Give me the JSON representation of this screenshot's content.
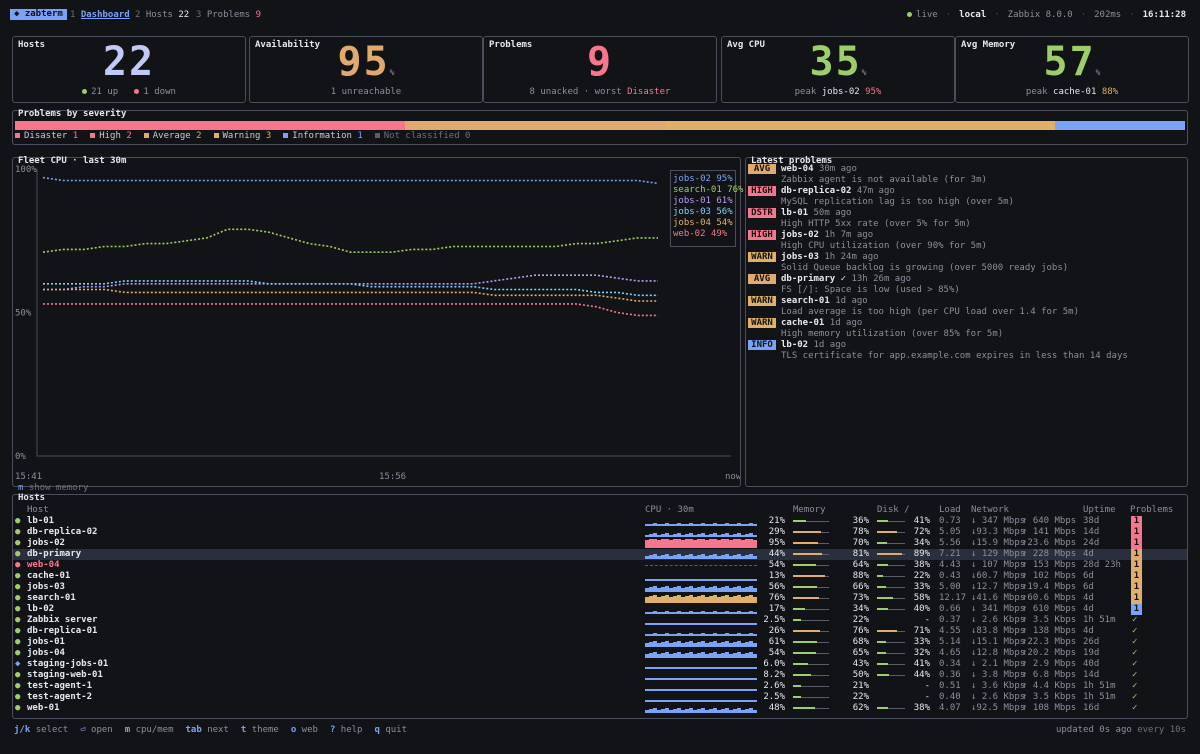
{
  "app": {
    "logo": "◆ zabterm",
    "tabs": [
      {
        "num": "1",
        "label": "Dashboard"
      },
      {
        "num": "2",
        "label": "Hosts",
        "count": "22"
      },
      {
        "num": "3",
        "label": "Problems",
        "count": "9"
      }
    ],
    "status": "live",
    "context": "local",
    "server": "Zabbix 8.0.0",
    "latency": "202ms",
    "time": "16:11:28"
  },
  "cards": {
    "hosts": {
      "title": "Hosts",
      "value": "22",
      "up": "21 up",
      "down": "1 down"
    },
    "availability": {
      "title": "Availability",
      "value": "95",
      "unit": "%",
      "sub": "1 unreachable"
    },
    "problems": {
      "title": "Problems",
      "value": "9",
      "sub_prefix": "8 unacked · worst",
      "worst": "Disaster"
    },
    "cpu": {
      "title": "Avg CPU",
      "value": "35",
      "unit": "%",
      "peak_label": "peak",
      "peak_host": "jobs-02",
      "peak_value": "95%"
    },
    "memory": {
      "title": "Avg Memory",
      "value": "57",
      "unit": "%",
      "peak_label": "peak",
      "peak_host": "cache-01",
      "peak_value": "88%"
    }
  },
  "severity": {
    "title": "Problems by severity",
    "items": [
      {
        "label": "Disaster",
        "count": "1",
        "color": "#f7768e"
      },
      {
        "label": "High",
        "count": "2",
        "color": "#f7768e"
      },
      {
        "label": "Average",
        "count": "2",
        "color": "#e0a96d"
      },
      {
        "label": "Warning",
        "count": "3",
        "color": "#e0af68"
      },
      {
        "label": "Information",
        "count": "1",
        "color": "#7aa2f7"
      },
      {
        "label": "Not classified",
        "count": "0",
        "color": "#5a5e6a"
      }
    ]
  },
  "chart_data": {
    "type": "line",
    "title": "Fleet CPU · last 30m",
    "yticks": [
      "100%",
      "50%",
      "0%"
    ],
    "ylim": [
      0,
      100
    ],
    "xticks": [
      "15:41",
      "15:56",
      "now"
    ],
    "series": [
      {
        "name": "jobs-02",
        "last": "95%",
        "color": "#7aa2f7",
        "values": [
          97,
          96,
          96,
          96,
          96,
          96,
          96,
          96,
          96,
          96,
          96,
          96,
          96,
          96,
          96,
          96,
          96,
          96,
          96,
          96,
          96,
          96,
          96,
          96,
          96,
          96,
          96,
          96,
          96,
          96,
          95
        ]
      },
      {
        "name": "search-01",
        "last": "76%",
        "color": "#9ece6a",
        "values": [
          71,
          72,
          72,
          73,
          73,
          74,
          74,
          75,
          76,
          79,
          79,
          78,
          76,
          74,
          73,
          71,
          71,
          71,
          72,
          72,
          73,
          73,
          73,
          73,
          73,
          73,
          74,
          74,
          75,
          76,
          76
        ]
      },
      {
        "name": "jobs-01",
        "last": "61%",
        "color": "#bb9af7",
        "values": [
          58,
          58,
          59,
          59,
          60,
          60,
          60,
          60,
          60,
          60,
          60,
          60,
          60,
          60,
          60,
          60,
          60,
          60,
          60,
          60,
          60,
          60,
          61,
          62,
          63,
          63,
          63,
          63,
          62,
          61,
          61
        ]
      },
      {
        "name": "jobs-03",
        "last": "56%",
        "color": "#7dcfff",
        "values": [
          60,
          60,
          60,
          60,
          61,
          61,
          61,
          61,
          61,
          61,
          61,
          60,
          60,
          60,
          60,
          60,
          59,
          59,
          59,
          59,
          59,
          59,
          58,
          58,
          58,
          58,
          58,
          57,
          57,
          56,
          56
        ]
      },
      {
        "name": "jobs-04",
        "last": "54%",
        "color": "#e0af68",
        "values": [
          58,
          58,
          58,
          58,
          57,
          57,
          57,
          57,
          57,
          57,
          57,
          57,
          57,
          57,
          57,
          57,
          57,
          57,
          57,
          57,
          57,
          57,
          56,
          56,
          56,
          56,
          56,
          56,
          55,
          54,
          54
        ]
      },
      {
        "name": "web-02",
        "last": "49%",
        "color": "#f7768e",
        "values": [
          53,
          53,
          53,
          53,
          53,
          53,
          53,
          53,
          53,
          53,
          53,
          53,
          53,
          53,
          53,
          53,
          53,
          53,
          53,
          53,
          53,
          53,
          53,
          53,
          53,
          53,
          53,
          52,
          50,
          49,
          49
        ]
      }
    ]
  },
  "latest": {
    "title": "Latest problems",
    "items": [
      {
        "sev": "AVG",
        "color": "#e0a96d",
        "host": "web-04",
        "ago": "30m ago",
        "desc": "Zabbix agent is not available (for 3m)"
      },
      {
        "sev": "HIGH",
        "color": "#f7768e",
        "host": "db-replica-02",
        "ago": "47m ago",
        "desc": "MySQL replication lag is too high (over 5m)"
      },
      {
        "sev": "DSTR",
        "color": "#f7768e",
        "host": "lb-01",
        "ago": "50m ago",
        "desc": "High HTTP 5xx rate (over 5% for 5m)"
      },
      {
        "sev": "HIGH",
        "color": "#f7768e",
        "host": "jobs-02",
        "ago": "1h 7m ago",
        "desc": "High CPU utilization (over 90% for 5m)"
      },
      {
        "sev": "WARN",
        "color": "#e0af68",
        "host": "jobs-03",
        "ago": "1h 24m ago",
        "desc": "Solid Queue backlog is growing (over 5000 ready jobs)"
      },
      {
        "sev": "AVG",
        "color": "#e0a96d",
        "host": "db-primary ✓",
        "ago": "13h 26m ago",
        "desc": "FS [/]: Space is low (used > 85%)"
      },
      {
        "sev": "WARN",
        "color": "#e0af68",
        "host": "search-01",
        "ago": "1d ago",
        "desc": "Load average is too high (per CPU load over 1.4 for 5m)"
      },
      {
        "sev": "WARN",
        "color": "#e0af68",
        "host": "cache-01",
        "ago": "1d ago",
        "desc": "High memory utilization (over 85% for 5m)"
      },
      {
        "sev": "INFO",
        "color": "#7aa2f7",
        "host": "lb-02",
        "ago": "1d ago",
        "desc": "TLS certificate for app.example.com expires in less than 14 days"
      }
    ]
  },
  "hosts": {
    "title": "Hosts",
    "show_memory_key": "m",
    "show_memory_label": "show memory",
    "columns": [
      "Host",
      "CPU · 30m",
      "Memory",
      "Disk /",
      "Load",
      "Network",
      "Uptime",
      "Problems"
    ],
    "rows": [
      {
        "status": "up",
        "name": "lb-01",
        "cpu": "21%",
        "cpu_v": 21,
        "mem": "36%",
        "mem_v": 36,
        "disk": "41%",
        "disk_v": 41,
        "load": "0.73",
        "net_down": "↓ 347 Mbps",
        "net_up": "↑ 640 Mbps",
        "uptime": "38d",
        "problems": "1",
        "pcolor": "#f7768e",
        "selected": false
      },
      {
        "status": "up",
        "name": "db-replica-02",
        "cpu": "29%",
        "cpu_v": 29,
        "mem": "78%",
        "mem_v": 78,
        "disk": "72%",
        "disk_v": 72,
        "load": "5.05",
        "net_down": "↓93.3 Mbps",
        "net_up": "↑ 141 Mbps",
        "uptime": "14d",
        "problems": "1",
        "pcolor": "#f7768e",
        "selected": false
      },
      {
        "status": "up",
        "name": "jobs-02",
        "cpu": "95%",
        "cpu_v": 95,
        "mem": "70%",
        "mem_v": 70,
        "disk": "34%",
        "disk_v": 34,
        "load": "5.56",
        "net_down": "↓15.9 Mbps",
        "net_up": "↑23.6 Mbps",
        "uptime": "24d",
        "problems": "1",
        "pcolor": "#f7768e",
        "selected": false
      },
      {
        "status": "up",
        "name": "db-primary",
        "cpu": "44%",
        "cpu_v": 44,
        "mem": "81%",
        "mem_v": 81,
        "disk": "89%",
        "disk_v": 89,
        "load": "7.21",
        "net_down": "↓ 129 Mbps",
        "net_up": "↑ 228 Mbps",
        "uptime": "4d",
        "problems": "1",
        "pcolor": "#e0a96d",
        "selected": true
      },
      {
        "status": "down",
        "name": "web-04",
        "cpu": "54%",
        "cpu_v": 54,
        "mem": "64%",
        "mem_v": 64,
        "disk": "38%",
        "disk_v": 38,
        "load": "4.43",
        "net_down": "↓ 107 Mbps",
        "net_up": "↑ 153 Mbps",
        "uptime": "28d 23h",
        "problems": "1",
        "pcolor": "#e0a96d",
        "selected": false
      },
      {
        "status": "up",
        "name": "cache-01",
        "cpu": "13%",
        "cpu_v": 13,
        "mem": "88%",
        "mem_v": 88,
        "disk": "22%",
        "disk_v": 22,
        "load": "0.43",
        "net_down": "↓60.7 Mbps",
        "net_up": "↑ 102 Mbps",
        "uptime": "6d",
        "problems": "1",
        "pcolor": "#e0af68",
        "selected": false
      },
      {
        "status": "up",
        "name": "jobs-03",
        "cpu": "56%",
        "cpu_v": 56,
        "mem": "66%",
        "mem_v": 66,
        "disk": "33%",
        "disk_v": 33,
        "load": "5.00",
        "net_down": "↓12.7 Mbps",
        "net_up": "↑19.4 Mbps",
        "uptime": "6d",
        "problems": "1",
        "pcolor": "#e0af68",
        "selected": false
      },
      {
        "status": "up",
        "name": "search-01",
        "cpu": "76%",
        "cpu_v": 76,
        "mem": "73%",
        "mem_v": 73,
        "disk": "58%",
        "disk_v": 58,
        "load": "12.17",
        "net_down": "↓41.6 Mbps",
        "net_up": "↑60.6 Mbps",
        "uptime": "4d",
        "problems": "1",
        "pcolor": "#e0af68",
        "selected": false
      },
      {
        "status": "up",
        "name": "lb-02",
        "cpu": "17%",
        "cpu_v": 17,
        "mem": "34%",
        "mem_v": 34,
        "disk": "40%",
        "disk_v": 40,
        "load": "0.66",
        "net_down": "↓ 341 Mbps",
        "net_up": "↑ 610 Mbps",
        "uptime": "4d",
        "problems": "1",
        "pcolor": "#7aa2f7",
        "selected": false
      },
      {
        "status": "up",
        "name": "Zabbix server",
        "cpu": "2.5%",
        "cpu_v": 2.5,
        "mem": "22%",
        "mem_v": 22,
        "disk": "-",
        "disk_v": 0,
        "load": "0.37",
        "net_down": "↓ 2.6 Kbps",
        "net_up": "↑ 3.5 Kbps",
        "uptime": "1h 51m",
        "problems": "✓",
        "pcolor": "",
        "selected": false
      },
      {
        "status": "up",
        "name": "db-replica-01",
        "cpu": "26%",
        "cpu_v": 26,
        "mem": "76%",
        "mem_v": 76,
        "disk": "71%",
        "disk_v": 71,
        "load": "4.55",
        "net_down": "↓83.8 Mbps",
        "net_up": "↑ 138 Mbps",
        "uptime": "4d",
        "problems": "✓",
        "pcolor": "",
        "selected": false
      },
      {
        "status": "up",
        "name": "jobs-01",
        "cpu": "61%",
        "cpu_v": 61,
        "mem": "68%",
        "mem_v": 68,
        "disk": "33%",
        "disk_v": 33,
        "load": "5.14",
        "net_down": "↓15.1 Mbps",
        "net_up": "↑22.3 Mbps",
        "uptime": "26d",
        "problems": "✓",
        "pcolor": "",
        "selected": false
      },
      {
        "status": "up",
        "name": "jobs-04",
        "cpu": "54%",
        "cpu_v": 54,
        "mem": "65%",
        "mem_v": 65,
        "disk": "32%",
        "disk_v": 32,
        "load": "4.65",
        "net_down": "↓12.8 Mbps",
        "net_up": "↑20.2 Mbps",
        "uptime": "19d",
        "problems": "✓",
        "pcolor": "",
        "selected": false
      },
      {
        "status": "staging",
        "name": "staging-jobs-01",
        "cpu": "6.0%",
        "cpu_v": 6,
        "mem": "43%",
        "mem_v": 43,
        "disk": "41%",
        "disk_v": 41,
        "load": "0.34",
        "net_down": "↓ 2.1 Mbps",
        "net_up": "↑ 2.9 Mbps",
        "uptime": "40d",
        "problems": "✓",
        "pcolor": "",
        "selected": false
      },
      {
        "status": "up",
        "name": "staging-web-01",
        "cpu": "8.2%",
        "cpu_v": 8.2,
        "mem": "50%",
        "mem_v": 50,
        "disk": "44%",
        "disk_v": 44,
        "load": "0.36",
        "net_down": "↓ 3.8 Mbps",
        "net_up": "↑ 6.8 Mbps",
        "uptime": "14d",
        "problems": "✓",
        "pcolor": "",
        "selected": false
      },
      {
        "status": "up",
        "name": "test-agent-1",
        "cpu": "2.6%",
        "cpu_v": 2.6,
        "mem": "21%",
        "mem_v": 21,
        "disk": "-",
        "disk_v": 0,
        "load": "0.51",
        "net_down": "↓ 3.6 Kbps",
        "net_up": "↑ 4.4 Kbps",
        "uptime": "1h 51m",
        "problems": "✓",
        "pcolor": "",
        "selected": false
      },
      {
        "status": "up",
        "name": "test-agent-2",
        "cpu": "2.5%",
        "cpu_v": 2.5,
        "mem": "22%",
        "mem_v": 22,
        "disk": "-",
        "disk_v": 0,
        "load": "0.40",
        "net_down": "↓ 2.6 Kbps",
        "net_up": "↑ 3.5 Kbps",
        "uptime": "1h 51m",
        "problems": "✓",
        "pcolor": "",
        "selected": false
      },
      {
        "status": "up",
        "name": "web-01",
        "cpu": "48%",
        "cpu_v": 48,
        "mem": "62%",
        "mem_v": 62,
        "disk": "38%",
        "disk_v": 38,
        "load": "4.07",
        "net_down": "↓92.5 Mbps",
        "net_up": "↑ 108 Mbps",
        "uptime": "16d",
        "problems": "✓",
        "pcolor": "",
        "selected": false
      }
    ]
  },
  "footer": {
    "keys": [
      {
        "key": "j/k",
        "label": "select"
      },
      {
        "key": "⏎",
        "label": "open"
      },
      {
        "key": "m",
        "label": "cpu/mem"
      },
      {
        "key": "tab",
        "label": "next"
      },
      {
        "key": "t",
        "label": "theme"
      },
      {
        "key": "o",
        "label": "web"
      },
      {
        "key": "?",
        "label": "help"
      },
      {
        "key": "q",
        "label": "quit"
      }
    ],
    "updated": "updated 0s ago",
    "interval": "every 10s"
  }
}
